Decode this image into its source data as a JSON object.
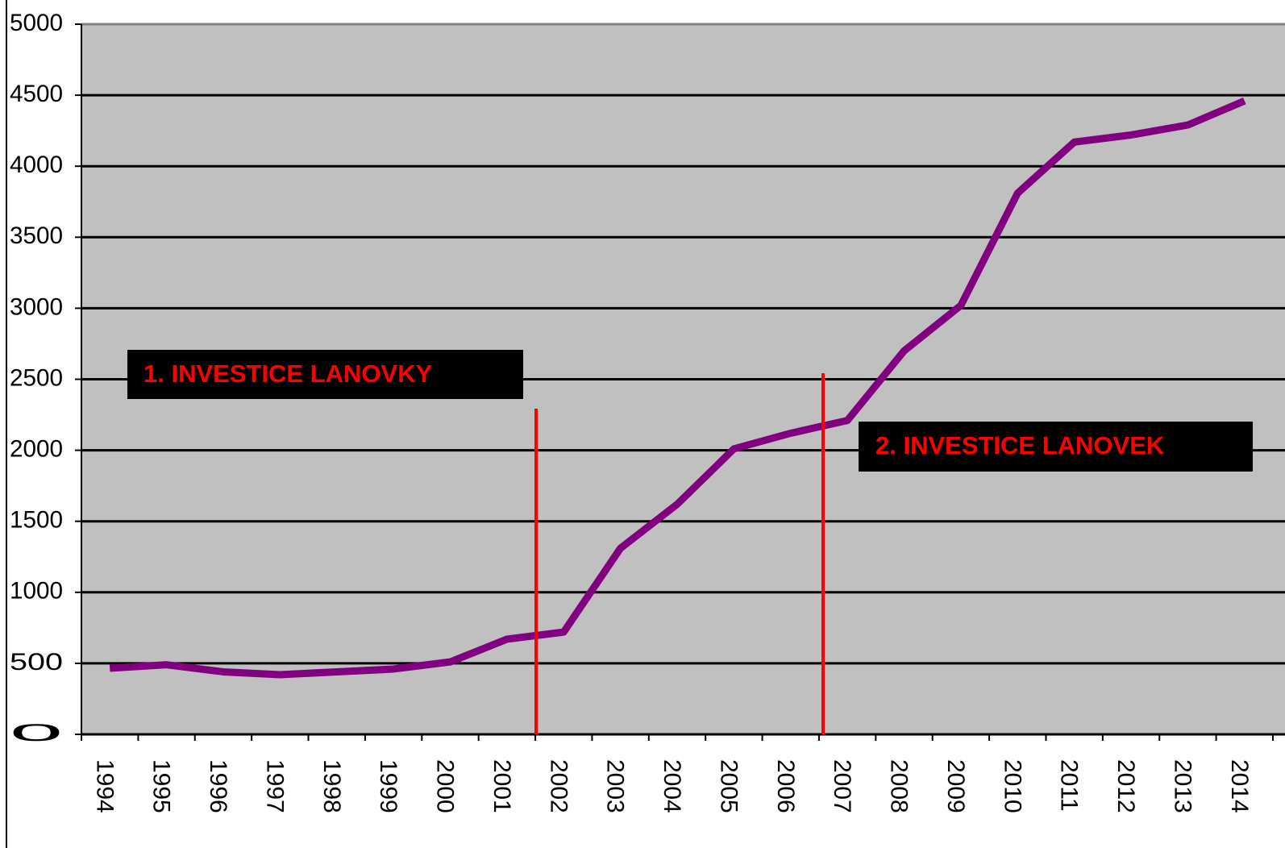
{
  "chart_data": {
    "type": "line",
    "categories": [
      "1994",
      "1995",
      "1996",
      "1997",
      "1998",
      "1999",
      "2000",
      "2001",
      "2002",
      "2003",
      "2004",
      "2005",
      "2006",
      "2007",
      "2008",
      "2009",
      "2010",
      "2011",
      "2012",
      "2013",
      "2014"
    ],
    "series": [
      {
        "color": "#800080",
        "values": [
          465,
          490,
          440,
          420,
          440,
          460,
          510,
          670,
          720,
          1310,
          1620,
          2010,
          2120,
          2210,
          2700,
          3020,
          3810,
          4170,
          4220,
          4290,
          4460
        ]
      }
    ],
    "ylim": [
      0,
      5000
    ],
    "yticks": [
      0,
      500,
      1000,
      1500,
      2000,
      2500,
      3000,
      3500,
      4000,
      4500,
      5000
    ],
    "grid": true,
    "annotations": [
      "1. INVESTICE  LANOVKY",
      "2. INVESTICE  LANOVEK"
    ]
  }
}
